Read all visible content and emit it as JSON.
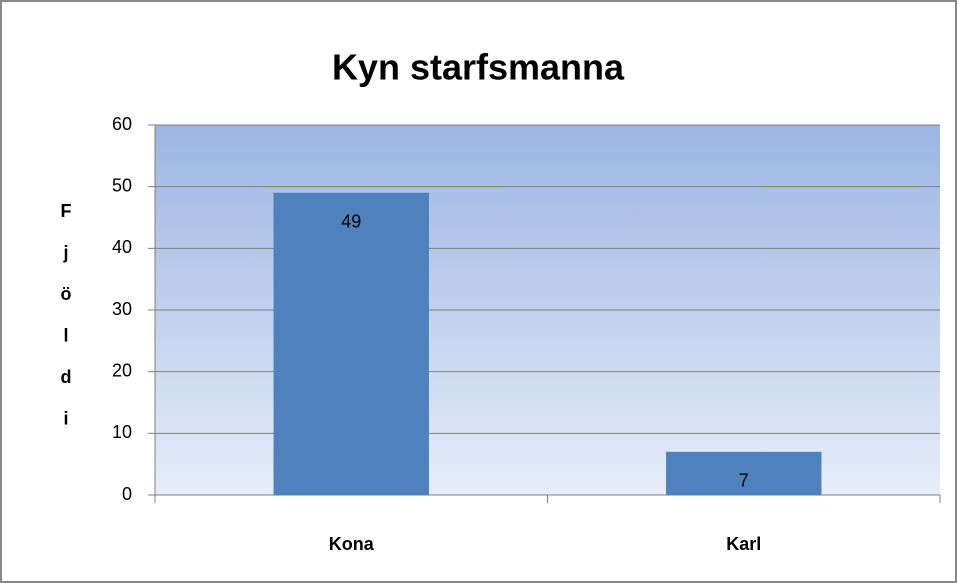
{
  "chart_data": {
    "type": "bar",
    "title": "Kyn starfsmanna",
    "y_label": "Fjöldi",
    "categories": [
      "Kona",
      "Karl"
    ],
    "values": [
      49,
      7
    ],
    "color": "#4f81bd",
    "ylim": [
      0,
      60
    ],
    "yticks": [
      0,
      10,
      20,
      30,
      40,
      50,
      60
    ],
    "grid": true
  }
}
